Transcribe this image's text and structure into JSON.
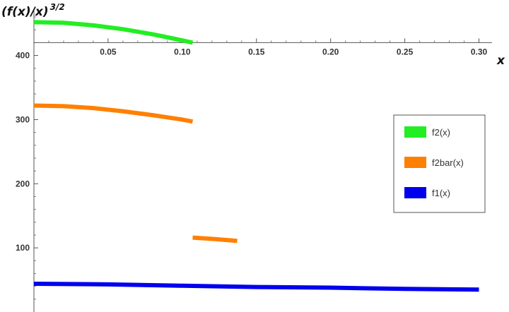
{
  "chart_data": {
    "type": "line",
    "ylabel": "(f(x)/x)^(3/2)",
    "ylabel_base": "(f(x)/x)",
    "ylabel_exp": "3/2",
    "xlabel": "x",
    "xlim": [
      0,
      0.305
    ],
    "ylim": [
      0,
      470
    ],
    "x_axis_crossing_y": 420,
    "x_ticks": [
      0.05,
      0.1,
      0.15,
      0.2,
      0.25,
      0.3
    ],
    "x_tick_labels": [
      "0.05",
      "0.10",
      "0.15",
      "0.20",
      "0.25",
      "0.30"
    ],
    "y_ticks": [
      100,
      200,
      300,
      400
    ],
    "y_tick_labels": [
      "100",
      "200",
      "300",
      "400"
    ],
    "grid": false,
    "legend_position": "right",
    "series": [
      {
        "name": "f2(x)",
        "color": "#22ee22",
        "segments": [
          [
            [
              0,
              452
            ],
            [
              0.02,
              451
            ],
            [
              0.04,
              447
            ],
            [
              0.06,
              441
            ],
            [
              0.08,
              433
            ],
            [
              0.095,
              426
            ],
            [
              0.107,
              420
            ]
          ]
        ]
      },
      {
        "name": "f2bar(x)",
        "color": "#ff8000",
        "segments": [
          [
            [
              0,
              322
            ],
            [
              0.02,
              321
            ],
            [
              0.04,
              318
            ],
            [
              0.06,
              313
            ],
            [
              0.08,
              307
            ],
            [
              0.1,
              300
            ],
            [
              0.107,
              297
            ]
          ],
          [
            [
              0.107,
              116
            ],
            [
              0.12,
              114
            ],
            [
              0.137,
              111
            ]
          ]
        ]
      },
      {
        "name": "f1(x)",
        "color": "#0000ee",
        "segments": [
          [
            [
              0,
              44
            ],
            [
              0.05,
              43
            ],
            [
              0.1,
              41
            ],
            [
              0.15,
              39
            ],
            [
              0.2,
              38
            ],
            [
              0.25,
              36
            ],
            [
              0.3,
              35
            ]
          ]
        ]
      }
    ]
  }
}
